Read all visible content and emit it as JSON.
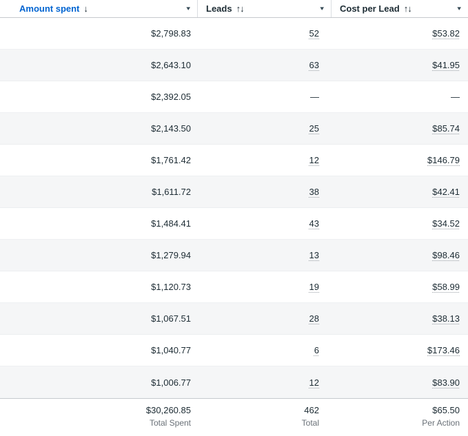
{
  "colors": {
    "accent_blue": "#0064d1",
    "text_dark": "#1c2b33",
    "muted_gray": "#697077",
    "row_alt_bg": "#f5f6f7",
    "header_separator": "#dadde1",
    "strong_border": "#c6c9cd"
  },
  "placeholders": {
    "empty": "—"
  },
  "header": {
    "columns": [
      {
        "label": "Amount spent",
        "sorted": true,
        "sort_direction": "descending",
        "sort_glyph": "↓",
        "caret": "▾"
      },
      {
        "label": "Leads",
        "sorted": false,
        "sort_direction": "none",
        "sort_glyph": "↑↓",
        "caret": "▾"
      },
      {
        "label": "Cost per Lead",
        "sorted": false,
        "sort_direction": "none",
        "sort_glyph": "↑↓",
        "caret": "▾"
      }
    ]
  },
  "rows": [
    {
      "amount": "$2,798.83",
      "leads": "52",
      "cost": "$53.82"
    },
    {
      "amount": "$2,643.10",
      "leads": "63",
      "cost": "$41.95"
    },
    {
      "amount": "$2,392.05",
      "leads": "—",
      "cost": "—"
    },
    {
      "amount": "$2,143.50",
      "leads": "25",
      "cost": "$85.74"
    },
    {
      "amount": "$1,761.42",
      "leads": "12",
      "cost": "$146.79"
    },
    {
      "amount": "$1,611.72",
      "leads": "38",
      "cost": "$42.41"
    },
    {
      "amount": "$1,484.41",
      "leads": "43",
      "cost": "$34.52"
    },
    {
      "amount": "$1,279.94",
      "leads": "13",
      "cost": "$98.46"
    },
    {
      "amount": "$1,120.73",
      "leads": "19",
      "cost": "$58.99"
    },
    {
      "amount": "$1,067.51",
      "leads": "28",
      "cost": "$38.13"
    },
    {
      "amount": "$1,040.77",
      "leads": "6",
      "cost": "$173.46"
    },
    {
      "amount": "$1,006.77",
      "leads": "12",
      "cost": "$83.90"
    }
  ],
  "footer": {
    "amount": {
      "value": "$30,260.85",
      "label": "Total Spent"
    },
    "leads": {
      "value": "462",
      "label": "Total"
    },
    "cost": {
      "value": "$65.50",
      "label": "Per Action"
    }
  }
}
